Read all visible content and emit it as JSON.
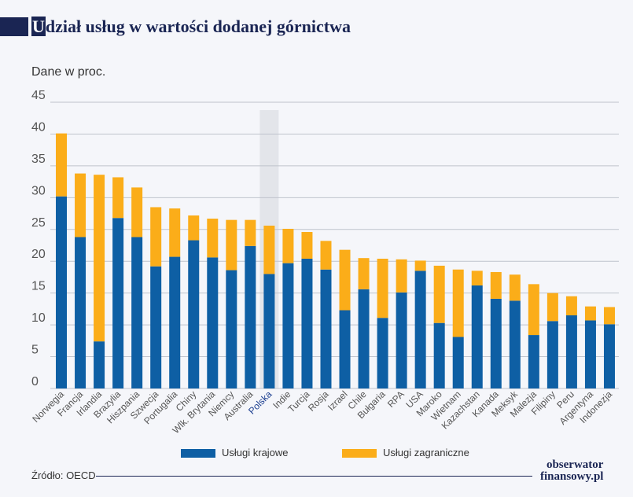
{
  "header": {
    "title_first_letter": "U",
    "title_rest": "dział usług w wartości dodanej górnictwa"
  },
  "subtitle": "Dane w proc.",
  "footer": {
    "source": "Źródło: OECD",
    "logo_line1": "obserwator",
    "logo_line2": "finansowy.pl"
  },
  "colors": {
    "domestic": "#0e5fa4",
    "foreign": "#fbad19",
    "highlight_band": "#e3e5ea",
    "highlight_label": "#1a3d8f",
    "grid": "#bfc3cc",
    "axis_text": "#555555"
  },
  "chart_data": {
    "type": "bar",
    "stacked": true,
    "categories": [
      "Norwegia",
      "Francja",
      "Irlandia",
      "Brazylia",
      "Hiszpania",
      "Szwecja",
      "Portugalia",
      "Chiny",
      "Wlk. Brytania",
      "Niemcy",
      "Australia",
      "Polska",
      "Indie",
      "Turcja",
      "Rosja",
      "Izrael",
      "Chile",
      "Bułgaria",
      "RPA",
      "USA",
      "Maroko",
      "Wietnam",
      "Kazachstan",
      "Kanada",
      "Meksyk",
      "Malezja",
      "Filipiny",
      "Peru",
      "Argentyna",
      "Indonezja"
    ],
    "highlight_category": "Polska",
    "series": [
      {
        "name": "Usługi krajowe",
        "color": "#0e5fa4",
        "values": [
          30.2,
          23.8,
          7.4,
          26.8,
          23.8,
          19.2,
          20.7,
          23.3,
          20.6,
          18.6,
          22.4,
          18.0,
          19.7,
          20.4,
          18.7,
          12.3,
          15.6,
          11.1,
          15.1,
          18.5,
          10.3,
          8.1,
          16.2,
          14.1,
          13.8,
          8.4,
          10.6,
          11.5,
          10.7,
          10.1
        ]
      },
      {
        "name": "Usługi zagraniczne",
        "color": "#fbad19",
        "values": [
          9.9,
          10.0,
          26.2,
          6.4,
          7.8,
          9.3,
          7.6,
          3.9,
          6.1,
          7.9,
          4.1,
          7.6,
          5.4,
          4.2,
          4.5,
          9.5,
          4.9,
          9.3,
          5.2,
          1.6,
          9.0,
          10.6,
          2.3,
          4.2,
          4.1,
          8.0,
          4.4,
          3.0,
          2.2,
          2.7
        ]
      }
    ],
    "ylim": [
      0,
      45
    ],
    "yticks": [
      "0",
      "5",
      "10",
      "15",
      "20",
      "25",
      "30",
      "35",
      "40",
      "45"
    ],
    "ylabel": "Dane w proc.",
    "grid": true,
    "legend_position": "bottom"
  }
}
